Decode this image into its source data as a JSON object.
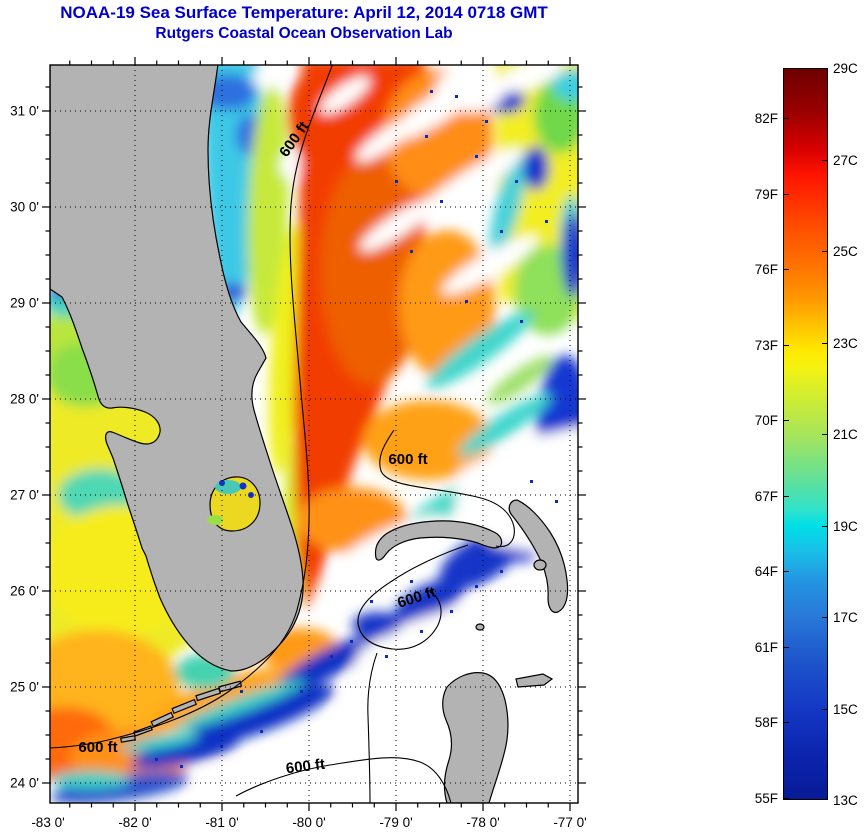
{
  "title": "NOAA-19 Sea Surface Temperature:  April 12, 2014 0718 GMT",
  "subtitle": "Rutgers Coastal Ocean Observation Lab",
  "title_color": "#0000cc",
  "map": {
    "contour_label": "600 ft",
    "land_color": "#b3b3b3",
    "cloud_color": "#ffffff",
    "x_axis_labels": [
      "-83 0'",
      "-82 0'",
      "-81 0'",
      "-80 0'",
      "-79 0'",
      "-78 0'",
      "-77 0'"
    ],
    "y_axis_labels": [
      "31 0'",
      "30 0'",
      "29 0'",
      "28 0'",
      "27 0'",
      "26 0'",
      "25 0'",
      "24 0'"
    ]
  },
  "colorbar": {
    "celsius_labels": [
      "29C",
      "27C",
      "25C",
      "23C",
      "21C",
      "19C",
      "17C",
      "15C",
      "13C"
    ],
    "fahrenheit_labels": [
      "82F",
      "79F",
      "76F",
      "73F",
      "70F",
      "67F",
      "64F",
      "61F",
      "58F",
      "55F"
    ],
    "scale_min_c": 13,
    "scale_max_c": 29
  },
  "map_data": {
    "type": "sea-surface-temperature-map",
    "satellite": "NOAA-19",
    "datetime_shown": "April 12, 2014 0718 GMT",
    "lon_tick_values": [
      -83,
      -82,
      -81,
      -80,
      -79,
      -78,
      -77
    ],
    "lat_tick_values": [
      31,
      30,
      29,
      28,
      27,
      26,
      25,
      24
    ],
    "temperature_ticks_c": [
      29,
      27,
      25,
      23,
      21,
      19,
      17,
      15,
      13
    ],
    "temperature_ticks_f": [
      82,
      79,
      76,
      73,
      70,
      67,
      64,
      61,
      58,
      55
    ],
    "bathymetry_contour": "600 ft"
  }
}
